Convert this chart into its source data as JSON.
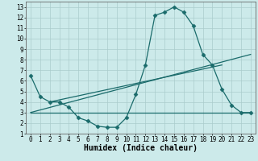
{
  "xlabel": "Humidex (Indice chaleur)",
  "bg_color": "#cceaea",
  "line_color": "#1a6b6b",
  "grid_color": "#aacccc",
  "xlim": [
    -0.5,
    23.5
  ],
  "ylim": [
    1,
    13.5
  ],
  "xticks": [
    0,
    1,
    2,
    3,
    4,
    5,
    6,
    7,
    8,
    9,
    10,
    11,
    12,
    13,
    14,
    15,
    16,
    17,
    18,
    19,
    20,
    21,
    22,
    23
  ],
  "yticks": [
    1,
    2,
    3,
    4,
    5,
    6,
    7,
    8,
    9,
    10,
    11,
    12,
    13
  ],
  "line1_x": [
    0,
    1,
    2,
    3,
    4,
    5,
    6,
    7,
    8,
    9,
    10,
    11,
    12,
    13,
    14,
    15,
    16,
    17,
    18,
    19,
    20,
    21,
    22,
    23
  ],
  "line1_y": [
    6.5,
    4.5,
    4.0,
    4.0,
    3.5,
    2.5,
    2.2,
    1.7,
    1.6,
    1.6,
    2.5,
    4.7,
    7.5,
    12.2,
    12.5,
    13.0,
    12.5,
    11.2,
    8.5,
    7.5,
    5.2,
    3.7,
    3.0,
    3.0
  ],
  "line2_x": [
    0,
    23
  ],
  "line2_y": [
    3.0,
    3.0
  ],
  "line3_x": [
    0,
    23
  ],
  "line3_y": [
    3.0,
    8.5
  ],
  "line4_x": [
    2,
    20
  ],
  "line4_y": [
    4.0,
    7.5
  ],
  "xlabel_fontsize": 7,
  "tick_fontsize": 5.5,
  "ylabel_fontsize": 6,
  "marker_size": 2.5,
  "line_width": 0.9
}
